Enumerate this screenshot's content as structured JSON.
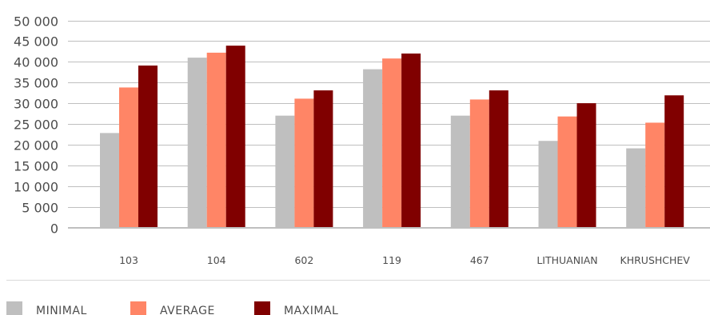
{
  "chart_data": {
    "type": "bar",
    "title": "",
    "xlabel": "",
    "ylabel": "",
    "categories": [
      "103",
      "104",
      "602",
      "119",
      "467",
      "LITHUANIAN",
      "KHRUSHCHEV"
    ],
    "y_ticks": [
      "0",
      "5 000",
      "10 000",
      "15 000",
      "20 000",
      "25 000",
      "30 000",
      "35 000",
      "40 000",
      "45 000",
      "50 000"
    ],
    "ylim": [
      0,
      50000
    ],
    "grid": true,
    "legend_position": "bottom-left",
    "series": [
      {
        "name": "MINIMAL",
        "color": "#bfbfbf",
        "values": [
          22800,
          41000,
          27000,
          38200,
          27000,
          20900,
          19100
        ]
      },
      {
        "name": "AVERAGE",
        "color": "#ff8566",
        "values": [
          33800,
          42200,
          31100,
          40800,
          30900,
          26800,
          25300
        ]
      },
      {
        "name": "MAXIMAL",
        "color": "#800000",
        "values": [
          39100,
          43900,
          33100,
          42000,
          33100,
          30000,
          31900
        ]
      }
    ]
  }
}
